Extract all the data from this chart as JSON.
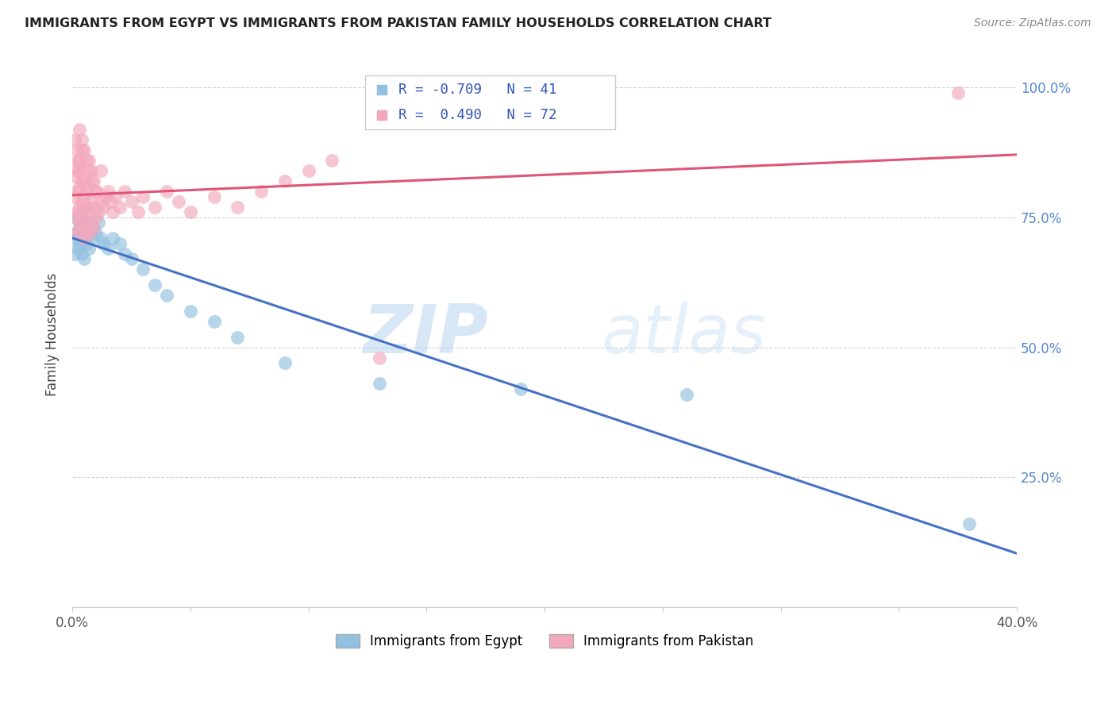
{
  "title": "IMMIGRANTS FROM EGYPT VS IMMIGRANTS FROM PAKISTAN FAMILY HOUSEHOLDS CORRELATION CHART",
  "source": "Source: ZipAtlas.com",
  "ylabel": "Family Households",
  "xlim": [
    0.0,
    0.4
  ],
  "ylim": [
    0.0,
    1.05
  ],
  "xtick_positions": [
    0.0,
    0.05,
    0.1,
    0.15,
    0.2,
    0.25,
    0.3,
    0.35,
    0.4
  ],
  "xticklabels": [
    "0.0%",
    "",
    "",
    "",
    "",
    "",
    "",
    "",
    "40.0%"
  ],
  "ytick_positions": [
    0.0,
    0.25,
    0.5,
    0.75,
    1.0
  ],
  "yticklabels_right": [
    "",
    "25.0%",
    "50.0%",
    "75.0%",
    "100.0%"
  ],
  "egypt_R": -0.709,
  "egypt_N": 41,
  "pakistan_R": 0.49,
  "pakistan_N": 72,
  "egypt_color": "#92C0E0",
  "pakistan_color": "#F4A8BC",
  "egypt_line_color": "#4472C4",
  "pakistan_line_color": "#E05575",
  "legend_label_egypt": "Immigrants from Egypt",
  "legend_label_pakistan": "Immigrants from Pakistan",
  "watermark_zip": "ZIP",
  "watermark_atlas": "atlas",
  "background_color": "#ffffff",
  "grid_color": "#d0d0d0",
  "egypt_x": [
    0.001,
    0.001,
    0.002,
    0.002,
    0.002,
    0.003,
    0.003,
    0.003,
    0.004,
    0.004,
    0.004,
    0.005,
    0.005,
    0.005,
    0.006,
    0.006,
    0.007,
    0.007,
    0.008,
    0.008,
    0.009,
    0.01,
    0.011,
    0.012,
    0.013,
    0.015,
    0.017,
    0.02,
    0.022,
    0.025,
    0.03,
    0.035,
    0.04,
    0.05,
    0.06,
    0.07,
    0.09,
    0.13,
    0.19,
    0.26,
    0.38
  ],
  "egypt_y": [
    0.72,
    0.68,
    0.75,
    0.71,
    0.69,
    0.74,
    0.7,
    0.73,
    0.76,
    0.72,
    0.68,
    0.74,
    0.71,
    0.67,
    0.73,
    0.7,
    0.72,
    0.69,
    0.74,
    0.71,
    0.73,
    0.72,
    0.74,
    0.71,
    0.7,
    0.69,
    0.71,
    0.7,
    0.68,
    0.67,
    0.65,
    0.62,
    0.6,
    0.57,
    0.55,
    0.52,
    0.47,
    0.43,
    0.42,
    0.41,
    0.16
  ],
  "pakistan_x": [
    0.001,
    0.001,
    0.001,
    0.002,
    0.002,
    0.002,
    0.002,
    0.003,
    0.003,
    0.003,
    0.003,
    0.004,
    0.004,
    0.004,
    0.005,
    0.005,
    0.005,
    0.006,
    0.006,
    0.006,
    0.007,
    0.007,
    0.008,
    0.008,
    0.009,
    0.009,
    0.01,
    0.011,
    0.012,
    0.013,
    0.014,
    0.015,
    0.016,
    0.017,
    0.018,
    0.02,
    0.022,
    0.025,
    0.028,
    0.03,
    0.035,
    0.04,
    0.045,
    0.05,
    0.06,
    0.07,
    0.08,
    0.09,
    0.1,
    0.11,
    0.002,
    0.003,
    0.004,
    0.005,
    0.006,
    0.007,
    0.008,
    0.009,
    0.01,
    0.012,
    0.001,
    0.002,
    0.003,
    0.003,
    0.004,
    0.005,
    0.006,
    0.007,
    0.008,
    0.01,
    0.13,
    0.375
  ],
  "pakistan_y": [
    0.75,
    0.79,
    0.83,
    0.72,
    0.76,
    0.8,
    0.84,
    0.73,
    0.77,
    0.81,
    0.85,
    0.74,
    0.78,
    0.82,
    0.71,
    0.75,
    0.79,
    0.73,
    0.77,
    0.81,
    0.72,
    0.76,
    0.74,
    0.78,
    0.73,
    0.77,
    0.75,
    0.76,
    0.78,
    0.77,
    0.79,
    0.8,
    0.78,
    0.76,
    0.79,
    0.77,
    0.8,
    0.78,
    0.76,
    0.79,
    0.77,
    0.8,
    0.78,
    0.76,
    0.79,
    0.77,
    0.8,
    0.82,
    0.84,
    0.86,
    0.86,
    0.84,
    0.88,
    0.82,
    0.8,
    0.86,
    0.84,
    0.82,
    0.8,
    0.84,
    0.9,
    0.88,
    0.86,
    0.92,
    0.9,
    0.88,
    0.86,
    0.84,
    0.82,
    0.8,
    0.48,
    0.99
  ]
}
